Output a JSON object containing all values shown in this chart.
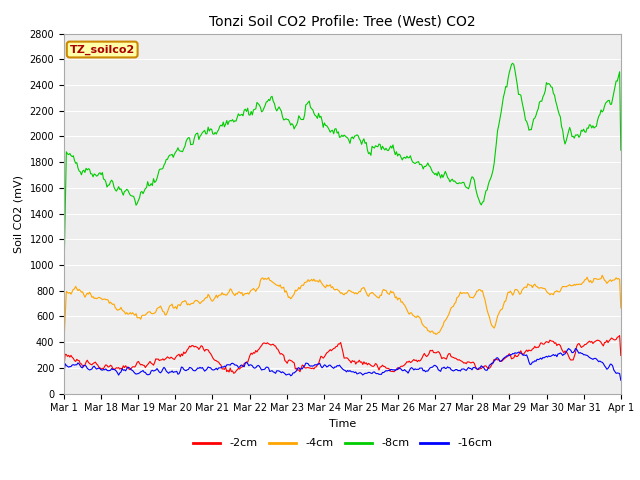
{
  "title": "Tonzi Soil CO2 Profile: Tree (West) CO2",
  "ylabel": "Soil CO2 (mV)",
  "xlabel": "Time",
  "ylim": [
    0,
    2800
  ],
  "yticks": [
    0,
    200,
    400,
    600,
    800,
    1000,
    1200,
    1400,
    1600,
    1800,
    2000,
    2200,
    2400,
    2600,
    2800
  ],
  "legend_label": "TZ_soilco2",
  "legend_text_color": "#aa0000",
  "legend_box_color": "#ffffaa",
  "legend_box_edge": "#cc8800",
  "series_labels": [
    "-2cm",
    "-4cm",
    "-8cm",
    "-16cm"
  ],
  "series_colors": [
    "#ff0000",
    "#ffa500",
    "#00cc00",
    "#0000ff"
  ],
  "background_color": "#ffffff",
  "plot_bg_color": "#eeeeee",
  "x_tick_labels": [
    "Mar 1",
    "Mar 18",
    "Mar 19",
    "Mar 20",
    "Mar 21",
    "Mar 22",
    "Mar 23",
    "Mar 24",
    "Mar 25",
    "Mar 26",
    "Mar 27",
    "Mar 28",
    "Mar 29",
    "Mar 30",
    "Mar 31",
    "Apr 1"
  ],
  "title_fontsize": 10,
  "axis_label_fontsize": 8,
  "tick_fontsize": 7
}
